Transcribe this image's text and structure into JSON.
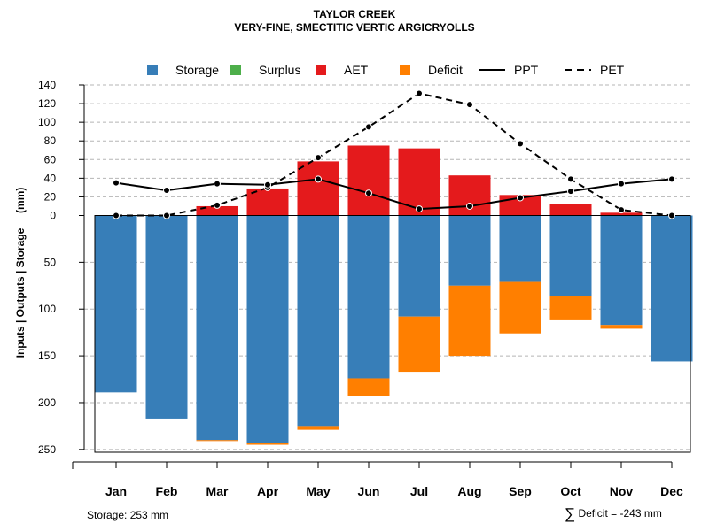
{
  "header": {
    "title": "TAYLOR CREEK",
    "subtitle": "VERY-FINE, SMECTITIC VERTIC ARGICRYOLLS"
  },
  "footer": {
    "storage_label": "Storage: 253 mm",
    "deficit_symbol": "∑",
    "deficit_label": "Deficit = -243 mm"
  },
  "chart_data": {
    "type": "bar",
    "title": "TAYLOR CREEK",
    "subtitle": "VERY-FINE, SMECTITIC VERTIC ARGICRYOLLS",
    "ylabel": "Inputs | Outputs | Storage     (mm)",
    "xlabel": "",
    "categories": [
      "Jan",
      "Feb",
      "Mar",
      "Apr",
      "May",
      "Jun",
      "Jul",
      "Aug",
      "Sep",
      "Oct",
      "Nov",
      "Dec"
    ],
    "upper_ylim": [
      0,
      140
    ],
    "upper_ticks": [
      0,
      20,
      40,
      60,
      80,
      100,
      120,
      140
    ],
    "lower_ylim": [
      0,
      253
    ],
    "lower_ticks": [
      50,
      100,
      150,
      200,
      250
    ],
    "grid": true,
    "legend_position": "top",
    "legend": [
      {
        "name": "Storage",
        "kind": "box",
        "color": "#377EB8"
      },
      {
        "name": "Surplus",
        "kind": "box",
        "color": "#4DAF4A"
      },
      {
        "name": "AET",
        "kind": "box",
        "color": "#E41A1C"
      },
      {
        "name": "Deficit",
        "kind": "box",
        "color": "#FF7F00"
      },
      {
        "name": "PPT",
        "kind": "solid",
        "color": "#000000"
      },
      {
        "name": "PET",
        "kind": "dashed",
        "color": "#000000"
      }
    ],
    "series": [
      {
        "name": "AET",
        "color": "#E41A1C",
        "direction": "up",
        "values": [
          0,
          0,
          10,
          29,
          58,
          75,
          72,
          43,
          22,
          12,
          3,
          0
        ]
      },
      {
        "name": "Surplus",
        "color": "#4DAF4A",
        "direction": "up",
        "values": [
          0,
          0,
          0,
          0,
          0,
          0,
          0,
          0,
          0,
          0,
          0,
          0
        ]
      },
      {
        "name": "Storage",
        "color": "#377EB8",
        "direction": "down",
        "values": [
          189,
          217,
          240,
          243,
          225,
          174,
          108,
          75,
          71,
          86,
          117,
          156
        ]
      },
      {
        "name": "Deficit",
        "color": "#FF7F00",
        "direction": "down",
        "values": [
          0,
          0,
          1,
          2,
          4,
          19,
          59,
          75,
          55,
          26,
          4,
          0
        ]
      },
      {
        "name": "PPT",
        "color": "#000000",
        "style": "solid",
        "markers": true,
        "values": [
          35,
          27,
          34,
          33,
          39,
          24,
          7,
          10,
          19,
          26,
          34,
          39
        ]
      },
      {
        "name": "PET",
        "color": "#000000",
        "style": "dashed",
        "markers": true,
        "values": [
          0,
          0,
          11,
          30,
          62,
          95,
          131,
          119,
          77,
          39,
          6,
          0
        ]
      }
    ]
  }
}
